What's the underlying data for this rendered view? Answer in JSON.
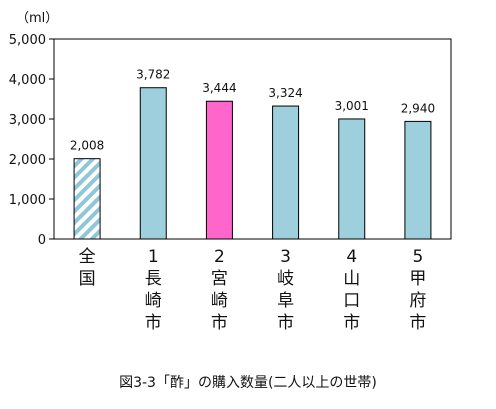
{
  "chart_data": {
    "type": "bar",
    "unit": "（ml）",
    "caption": "図3-3「酢」の購入数量(二人以上の世帯)",
    "y_ticks": [
      "0",
      "1,000",
      "2,000",
      "3,000",
      "4,000",
      "5,000"
    ],
    "ylim": [
      0,
      5000
    ],
    "grid": false,
    "categories": [
      [
        "全",
        "国"
      ],
      [
        "1",
        "長",
        "崎",
        "市"
      ],
      [
        "2",
        "宮",
        "崎",
        "市"
      ],
      [
        "3",
        "岐",
        "阜",
        "市"
      ],
      [
        "4",
        "山",
        "口",
        "市"
      ],
      [
        "5",
        "甲",
        "府",
        "市"
      ]
    ],
    "values": [
      2008,
      3782,
      3444,
      3324,
      3001,
      2940
    ],
    "value_labels": [
      "2,008",
      "3,782",
      "3,444",
      "3,324",
      "3,001",
      "2,940"
    ],
    "bar_styles": [
      "hatched",
      "solid",
      "highlight",
      "solid",
      "solid",
      "solid"
    ],
    "colors": {
      "bar": "#9DCFDD",
      "highlight": "#FF66CC",
      "hatch_line": "#8FC6D8",
      "hatch_bg": "#ffffff",
      "axis": "#000000",
      "text": "#111111"
    }
  }
}
